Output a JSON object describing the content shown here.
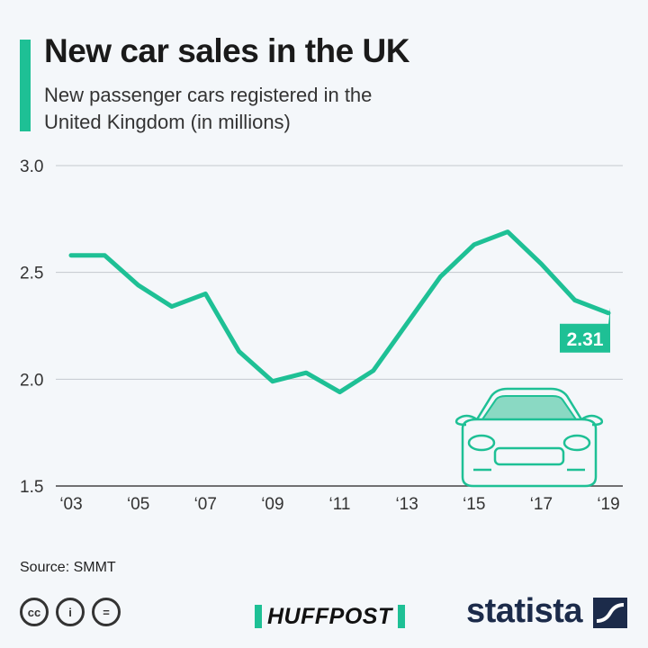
{
  "header": {
    "title": "New car sales in the UK",
    "subtitle": "New passenger cars registered in the United Kingdom (in millions)"
  },
  "chart_data": {
    "type": "line",
    "title": "New car sales in the UK",
    "subtitle": "New passenger cars registered in the United Kingdom (in millions)",
    "x": [
      2003,
      2004,
      2005,
      2006,
      2007,
      2008,
      2009,
      2010,
      2011,
      2012,
      2013,
      2014,
      2015,
      2016,
      2017,
      2018,
      2019
    ],
    "values": [
      2.58,
      2.58,
      2.44,
      2.34,
      2.4,
      2.13,
      1.99,
      2.03,
      1.94,
      2.04,
      2.26,
      2.48,
      2.63,
      2.69,
      2.54,
      2.37,
      2.31
    ],
    "x_tick_labels": [
      "‘03",
      "‘05",
      "‘07",
      "‘09",
      "‘11",
      "‘13",
      "‘15",
      "‘17",
      "‘19"
    ],
    "x_tick_values": [
      2003,
      2005,
      2007,
      2009,
      2011,
      2013,
      2015,
      2017,
      2019
    ],
    "y_ticks": [
      "1.5",
      "2.0",
      "2.5",
      "3.0"
    ],
    "ylim": [
      1.5,
      3.0
    ],
    "xlim": [
      2003,
      2019
    ],
    "last_value_label": "2.31",
    "grid": true,
    "line_color": "#1ec095"
  },
  "footer": {
    "source": "Source: SMMT",
    "cc_icons": [
      "creative-commons-icon",
      "attribution-icon",
      "no-derivatives-icon"
    ],
    "huffpost_logo": "HUFFPOST",
    "statista_logo": "statista"
  },
  "colors": {
    "accent": "#1ec095",
    "background": "#f4f7fa",
    "brand_dark": "#1c2b4a"
  }
}
